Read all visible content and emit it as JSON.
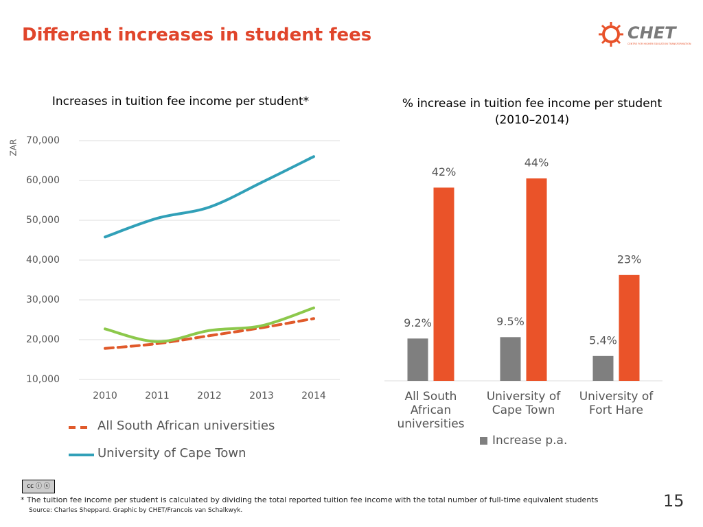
{
  "header": {
    "title": "Different increases in student fees",
    "logo": "CHET",
    "logo_subtitle": "CENTRE FOR HIGHER EDUCATION TRANSFORMATION"
  },
  "chart_data": [
    {
      "type": "line",
      "title": "Increases in tuition fee income per student*",
      "y_label": "ZAR",
      "categories": [
        "2010",
        "2011",
        "2012",
        "2013",
        "2014"
      ],
      "series": [
        {
          "name": "All South African universities",
          "color": "#e05a2b",
          "dashed": true,
          "values": [
            17800,
            19000,
            21000,
            23000,
            25300
          ]
        },
        {
          "name": "University of Cape Town",
          "color": "#31a0b8",
          "values": [
            45800,
            50500,
            53300,
            59500,
            66000
          ]
        },
        {
          "color": "#8cc84b",
          "values": [
            22700,
            19500,
            22300,
            23500,
            28000
          ]
        }
      ],
      "ylim": [
        10000,
        70000
      ],
      "yticks": [
        {
          "value": 10000,
          "label": "10,000"
        },
        {
          "value": 20000,
          "label": "20,000"
        },
        {
          "value": 30000,
          "label": "30,000"
        },
        {
          "value": 40000,
          "label": "40,000"
        },
        {
          "value": 50000,
          "label": "50,000"
        },
        {
          "value": 60000,
          "label": "60,000"
        },
        {
          "value": 70000,
          "label": "70,000"
        }
      ],
      "grid": true
    },
    {
      "type": "bar",
      "title": "% increase in tuition fee income per student (2010–2014)",
      "categories": [
        "All South African universities",
        "University of Cape Town",
        "University of Fort Hare"
      ],
      "series": [
        {
          "name": "Increase p.a.",
          "color": "#7f7f7f",
          "values": [
            9.2,
            9.5,
            5.4
          ],
          "value_labels": [
            "9.2%",
            "9.5%",
            "5.4%"
          ]
        },
        {
          "color": "#ea5329",
          "values": [
            42,
            44,
            23
          ],
          "value_labels": [
            "42%",
            "44%",
            "23%"
          ]
        }
      ]
    }
  ],
  "footer": {
    "footnote": "* The tuition fee income per student is calculated by dividing the total reported tuition fee income with the total number of full-time equivalent students",
    "source": "Source: Charles Sheppard. Graphic by CHET/Francois van Schalkwyk.",
    "page_number": "15"
  }
}
